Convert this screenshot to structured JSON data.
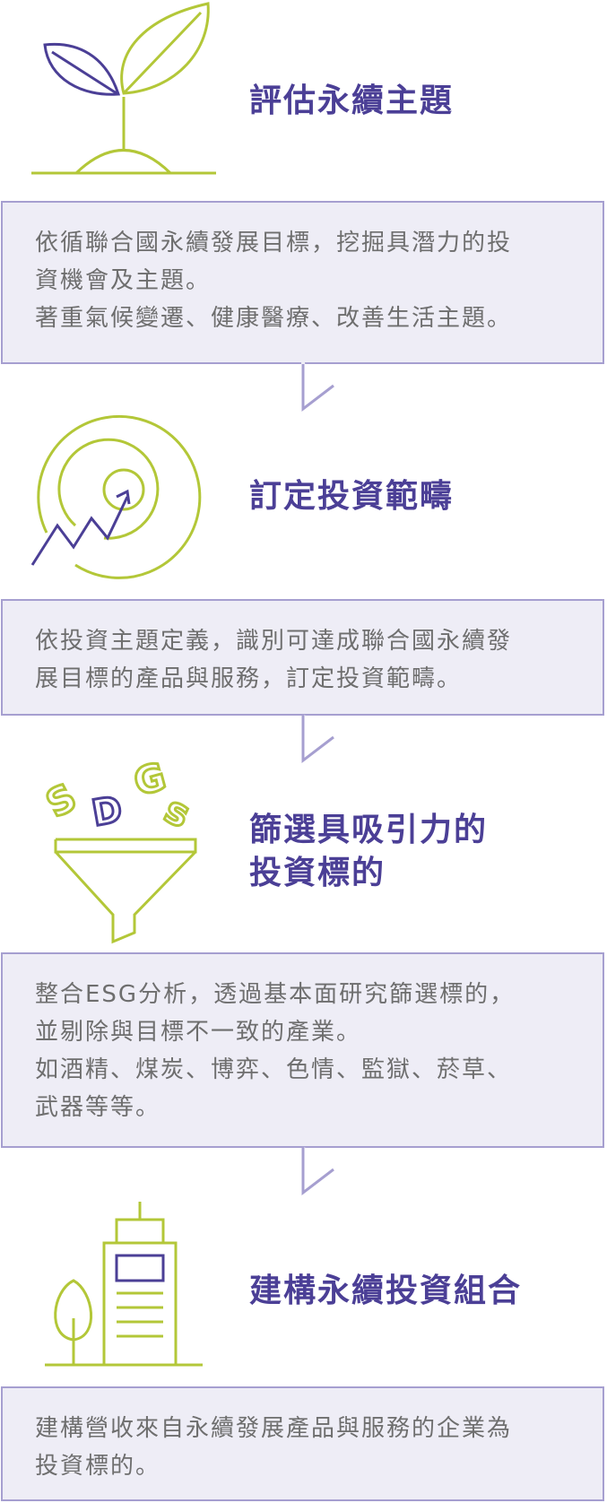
{
  "colors": {
    "purple": "#4b3f96",
    "green": "#b3c738",
    "box_bg": "#eeedf6",
    "box_border": "#a69fd0",
    "text": "#6e6e6e"
  },
  "steps": [
    {
      "icon": "sprout-icon",
      "title": "評估永續主題",
      "lines": [
        "依循聯合國永續發展目標，挖掘具潛力的投",
        "資機會及主題。",
        "著重氣候變遷、健康醫療、改善生活主題。"
      ]
    },
    {
      "icon": "target-growth-icon",
      "title": "訂定投資範疇",
      "lines": [
        "依投資主題定義，識別可達成聯合國永續發",
        "展目標的產品與服務，訂定投資範疇。"
      ]
    },
    {
      "icon": "sdgs-funnel-icon",
      "icon_text": "SDGs",
      "title_lines": [
        "篩選具吸引力的",
        "投資標的"
      ],
      "lines": [
        "整合ESG分析，透過基本面研究篩選標的，",
        "並剔除與目標不一致的產業。",
        "如酒精、煤炭、博弈、色情、監獄、菸草、",
        "武器等等。"
      ]
    },
    {
      "icon": "building-tree-icon",
      "title": "建構永續投資組合",
      "lines": [
        "建構營收來自永續發展產品與服務的企業為",
        "投資標的。"
      ]
    }
  ]
}
